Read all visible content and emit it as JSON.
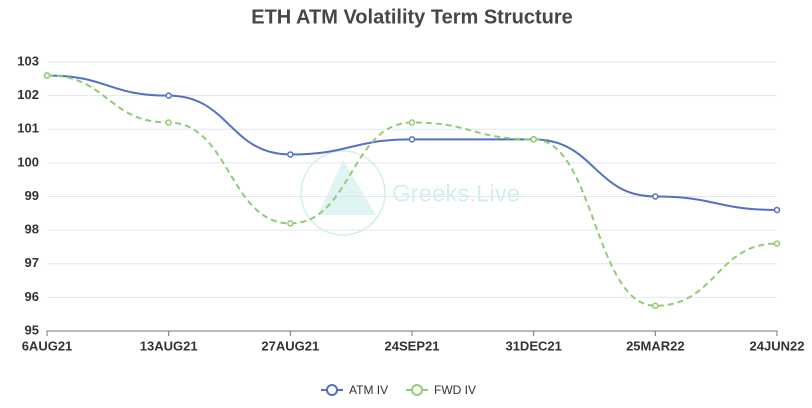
{
  "chart_data": {
    "type": "line",
    "title": "ETH ATM Volatility Term Structure",
    "watermark": "Greeks.Live",
    "categories": [
      "6AUG21",
      "13AUG21",
      "27AUG21",
      "24SEP21",
      "31DEC21",
      "25MAR22",
      "24JUN22"
    ],
    "series": [
      {
        "name": "ATM IV",
        "color": "#5470c6",
        "dashed": false,
        "values": [
          102.6,
          102.0,
          100.25,
          100.7,
          100.7,
          99.0,
          98.6
        ]
      },
      {
        "name": "FWD IV",
        "color": "#91cc75",
        "dashed": true,
        "values": [
          102.6,
          101.2,
          98.2,
          101.2,
          100.7,
          95.75,
          97.6
        ]
      }
    ],
    "ylim": [
      95,
      103
    ],
    "yticks": [
      95,
      96,
      97,
      98,
      99,
      100,
      101,
      102,
      103
    ],
    "grid": true
  }
}
